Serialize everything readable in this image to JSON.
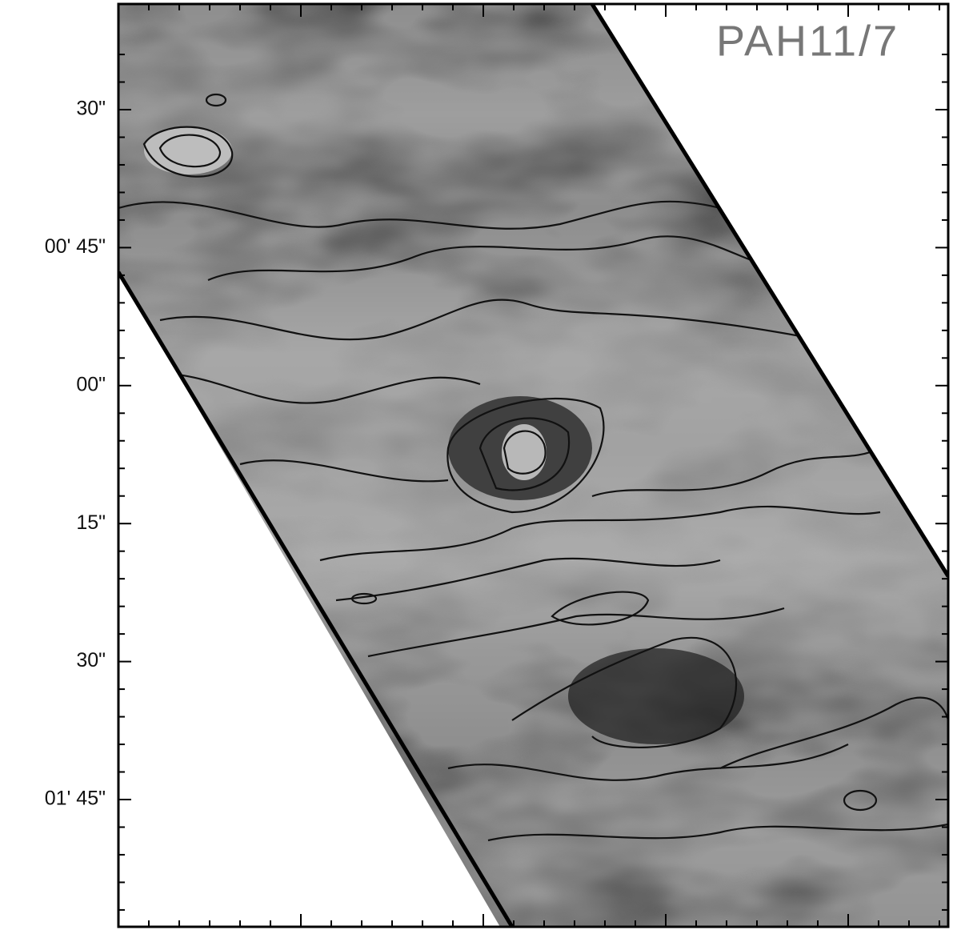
{
  "panel": {
    "label": "PAH11/7",
    "y_axis": {
      "ticks": [
        "30\"",
        "00' 45\"",
        "00\"",
        "15\"",
        "30\"",
        "01' 45\""
      ]
    }
  }
}
